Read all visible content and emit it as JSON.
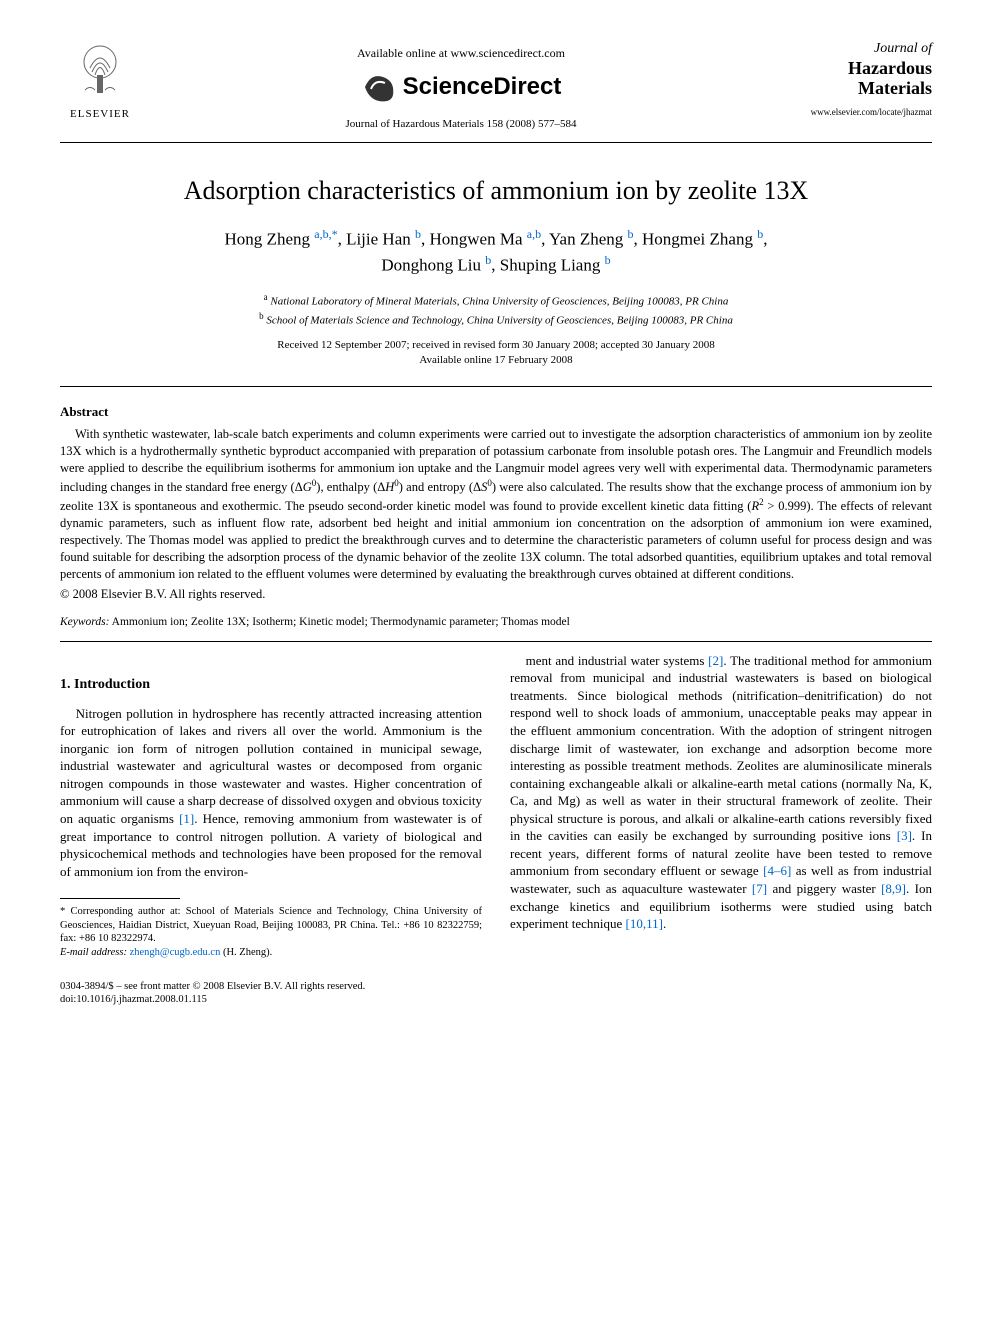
{
  "header": {
    "elsevier_label": "ELSEVIER",
    "available_online": "Available online at www.sciencedirect.com",
    "sciencedirect": "ScienceDirect",
    "citation": "Journal of Hazardous Materials 158 (2008) 577–584",
    "journal_of": "Journal of",
    "journal_name_line1": "Hazardous",
    "journal_name_line2": "Materials",
    "journal_url": "www.elsevier.com/locate/jhazmat"
  },
  "article": {
    "title": "Adsorption characteristics of ammonium ion by zeolite 13X",
    "authors_html": "Hong Zheng <span class='affil-mark'>a,b,*</span>, Lijie Han <span class='affil-mark'>b</span>, Hongwen Ma <span class='affil-mark'>a,b</span>, Yan Zheng <span class='affil-mark'>b</span>, Hongmei Zhang <span class='affil-mark'>b</span>,<br>Donghong Liu <span class='affil-mark'>b</span>, Shuping Liang <span class='affil-mark'>b</span>",
    "affiliation_a": "National Laboratory of Mineral Materials, China University of Geosciences, Beijing 100083, PR China",
    "affiliation_b": "School of Materials Science and Technology, China University of Geosciences, Beijing 100083, PR China",
    "dates_line1": "Received 12 September 2007; received in revised form 30 January 2008; accepted 30 January 2008",
    "dates_line2": "Available online 17 February 2008"
  },
  "abstract": {
    "heading": "Abstract",
    "body_html": "With synthetic wastewater, lab-scale batch experiments and column experiments were carried out to investigate the adsorption characteristics of ammonium ion by zeolite 13X which is a hydrothermally synthetic byproduct accompanied with preparation of potassium carbonate from insoluble potash ores. The Langmuir and Freundlich models were applied to describe the equilibrium isotherms for ammonium ion uptake and the Langmuir model agrees very well with experimental data. Thermodynamic parameters including changes in the standard free energy (Δ<span class='italic'>G</span><sup>0</sup>), enthalpy (Δ<span class='italic'>H</span><sup>0</sup>) and entropy (Δ<span class='italic'>S</span><sup>0</sup>) were also calculated. The results show that the exchange process of ammonium ion by zeolite 13X is spontaneous and exothermic. The pseudo second-order kinetic model was found to provide excellent kinetic data fitting (<span class='italic'>R</span><sup>2</sup> &gt; 0.999). The effects of relevant dynamic parameters, such as influent flow rate, adsorbent bed height and initial ammonium ion concentration on the adsorption of ammonium ion were examined, respectively. The Thomas model was applied to predict the breakthrough curves and to determine the characteristic parameters of column useful for process design and was found suitable for describing the adsorption process of the dynamic behavior of the zeolite 13X column. The total adsorbed quantities, equilibrium uptakes and total removal percents of ammonium ion related to the effluent volumes were determined by evaluating the breakthrough curves obtained at different conditions.",
    "copyright": "© 2008 Elsevier B.V. All rights reserved."
  },
  "keywords": {
    "label": "Keywords:",
    "list": "Ammonium ion; Zeolite 13X; Isotherm; Kinetic model; Thermodynamic parameter; Thomas model"
  },
  "intro": {
    "heading": "1.  Introduction",
    "col1_html": "Nitrogen pollution in hydrosphere has recently attracted increasing attention for eutrophication of lakes and rivers all over the world. Ammonium is the inorganic ion form of nitrogen pollution contained in municipal sewage, industrial wastewater and agricultural wastes or decomposed from organic nitrogen compounds in those wastewater and wastes. Higher concentration of ammonium will cause a sharp decrease of dissolved oxygen and obvious toxicity on aquatic organisms <span class='cite-link'>[1]</span>. Hence, removing ammonium from wastewater is of great importance to control nitrogen pollution. A variety of biological and physicochemical methods and technologies have been proposed for the removal of ammonium ion from the environ-",
    "col2_html": "ment and industrial water systems <span class='cite-link'>[2]</span>. The traditional method for ammonium removal from municipal and industrial wastewaters is based on biological treatments. Since biological methods (nitrification–denitrification) do not respond well to shock loads of ammonium, unacceptable peaks may appear in the effluent ammonium concentration. With the adoption of stringent nitrogen discharge limit of wastewater, ion exchange and adsorption become more interesting as possible treatment methods. Zeolites are aluminosilicate minerals containing exchangeable alkali or alkaline-earth metal cations (normally Na, K, Ca, and Mg) as well as water in their structural framework of zeolite. Their physical structure is porous, and alkali or alkaline-earth cations reversibly fixed in the cavities can easily be exchanged by surrounding positive ions <span class='cite-link'>[3]</span>. In recent years, different forms of natural zeolite have been tested to remove ammonium from secondary effluent or sewage <span class='cite-link'>[4–6]</span> as well as from industrial wastewater, such as aquaculture wastewater <span class='cite-link'>[7]</span> and piggery waster <span class='cite-link'>[8,9]</span>. Ion exchange kinetics and equilibrium isotherms were studied using batch experiment technique <span class='cite-link'>[10,11]</span>."
  },
  "footnote": {
    "corresponding": "* Corresponding author at: School of Materials Science and Technology, China University of Geosciences, Haidian District, Xueyuan Road, Beijing 100083, PR China. Tel.: +86 10 82322759; fax: +86 10 82322974.",
    "email_label": "E-mail address:",
    "email": "zhengh@cugb.edu.cn",
    "email_author": "(H. Zheng)."
  },
  "bottom": {
    "line1": "0304-3894/$ – see front matter © 2008 Elsevier B.V. All rights reserved.",
    "line2": "doi:10.1016/j.jhazmat.2008.01.115"
  },
  "colors": {
    "link": "#0066cc",
    "text": "#000000",
    "bg": "#ffffff"
  }
}
